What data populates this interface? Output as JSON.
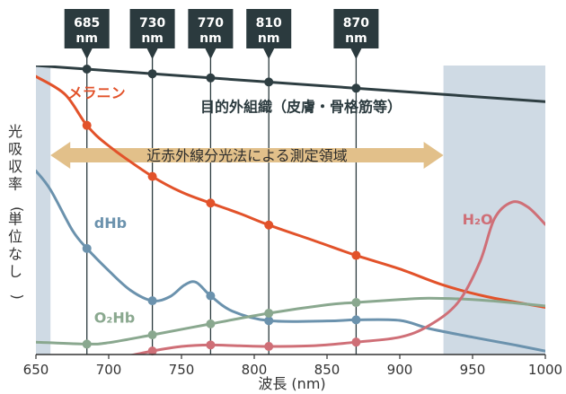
{
  "chart_data": {
    "type": "line",
    "xlabel": "波長 (nm)",
    "ylabel": "光吸収率 (単位なし)",
    "xlim": [
      650,
      1000
    ],
    "ylim": [
      0,
      1
    ],
    "xticks": [
      650,
      700,
      750,
      800,
      850,
      900,
      950,
      1000
    ],
    "grid": false,
    "shaded_regions": [
      {
        "from": 650,
        "to": 660,
        "color": "#cfdae4"
      },
      {
        "from": 930,
        "to": 1000,
        "color": "#cfdae4"
      }
    ],
    "wavelength_markers": [
      {
        "value": 685,
        "label": "685",
        "unit": "nm"
      },
      {
        "value": 730,
        "label": "730",
        "unit": "nm"
      },
      {
        "value": 770,
        "label": "770",
        "unit": "nm"
      },
      {
        "value": 810,
        "label": "810",
        "unit": "nm"
      },
      {
        "value": 870,
        "label": "870",
        "unit": "nm"
      }
    ],
    "annotation": {
      "text": "近赤外線分光法による測定領域",
      "from": 660,
      "to": 930,
      "color": "#e2c08a"
    },
    "series": [
      {
        "name": "目的外組織（皮膚・骨格筋等）",
        "color": "#2e3e42",
        "label_pos": [
          763,
          0.84
        ],
        "points": [
          [
            650,
            1.0
          ],
          [
            1000,
            0.875
          ]
        ]
      },
      {
        "name": "メラニン",
        "color": "#e2522a",
        "label_pos": [
          672,
          0.888
        ],
        "points": [
          [
            650,
            0.962
          ],
          [
            670,
            0.9
          ],
          [
            685,
            0.793
          ],
          [
            700,
            0.722
          ],
          [
            730,
            0.616
          ],
          [
            750,
            0.562
          ],
          [
            770,
            0.524
          ],
          [
            790,
            0.488
          ],
          [
            810,
            0.448
          ],
          [
            840,
            0.396
          ],
          [
            870,
            0.343
          ],
          [
            900,
            0.296
          ],
          [
            930,
            0.24
          ],
          [
            960,
            0.2
          ],
          [
            1000,
            0.163
          ]
        ]
      },
      {
        "name": "dHb",
        "color": "#6b92ad",
        "label_pos": [
          690,
          0.438
        ],
        "points": [
          [
            650,
            0.635
          ],
          [
            660,
            0.57
          ],
          [
            675,
            0.43
          ],
          [
            685,
            0.367
          ],
          [
            700,
            0.29
          ],
          [
            715,
            0.222
          ],
          [
            730,
            0.186
          ],
          [
            742,
            0.2
          ],
          [
            752,
            0.24
          ],
          [
            760,
            0.25
          ],
          [
            770,
            0.203
          ],
          [
            785,
            0.15
          ],
          [
            810,
            0.117
          ],
          [
            850,
            0.116
          ],
          [
            870,
            0.12
          ],
          [
            900,
            0.118
          ],
          [
            920,
            0.09
          ],
          [
            950,
            0.06
          ],
          [
            980,
            0.032
          ],
          [
            1000,
            0.012
          ]
        ]
      },
      {
        "name": "O₂Hb",
        "color": "#8aa88f",
        "label_pos": [
          690,
          0.11
        ],
        "points": [
          [
            650,
            0.043
          ],
          [
            685,
            0.036
          ],
          [
            700,
            0.041
          ],
          [
            730,
            0.068
          ],
          [
            770,
            0.106
          ],
          [
            810,
            0.143
          ],
          [
            850,
            0.172
          ],
          [
            870,
            0.18
          ],
          [
            900,
            0.19
          ],
          [
            920,
            0.195
          ],
          [
            950,
            0.19
          ],
          [
            980,
            0.178
          ],
          [
            1000,
            0.168
          ]
        ]
      },
      {
        "name": "H₂O",
        "color": "#cf6f77",
        "label_pos": [
          943,
          0.45
        ],
        "points": [
          [
            700,
            -0.02
          ],
          [
            730,
            0.012
          ],
          [
            750,
            0.028
          ],
          [
            770,
            0.033
          ],
          [
            790,
            0.03
          ],
          [
            810,
            0.028
          ],
          [
            840,
            0.03
          ],
          [
            870,
            0.043
          ],
          [
            900,
            0.06
          ],
          [
            920,
            0.1
          ],
          [
            940,
            0.18
          ],
          [
            955,
            0.32
          ],
          [
            965,
            0.47
          ],
          [
            977,
            0.527
          ],
          [
            988,
            0.51
          ],
          [
            1000,
            0.45
          ]
        ]
      }
    ]
  }
}
